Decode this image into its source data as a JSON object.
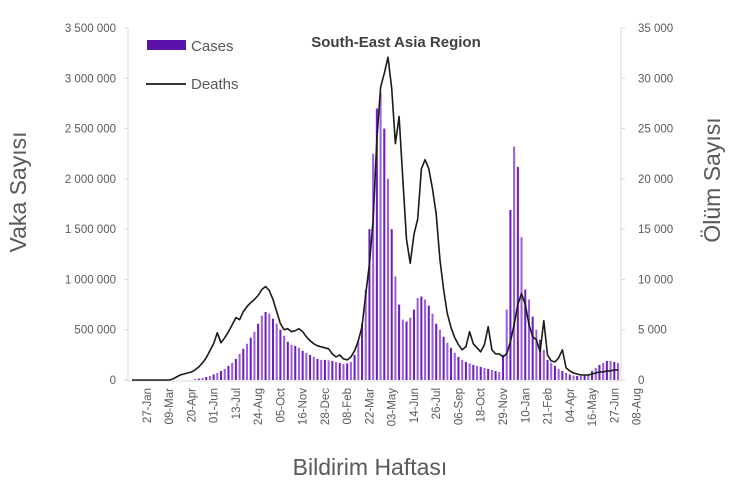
{
  "chart_data": {
    "type": "bar+line",
    "title": "South-East Asia Region",
    "xlabel": "Bildirim Haftası",
    "ylabel": "Vaka Sayısı",
    "y2label": "Ölüm Sayısı",
    "ylim": [
      0,
      3500000
    ],
    "y2lim": [
      0,
      35000
    ],
    "yticks": [
      "0",
      "500 000",
      "1 000 000",
      "1 500 000",
      "2 000 000",
      "2 500 000",
      "3 000 000",
      "3 500 000"
    ],
    "y2ticks": [
      "0",
      "5 000",
      "10 000",
      "15 000",
      "20 000",
      "25 000",
      "30 000",
      "35 000"
    ],
    "xtick_labels": [
      "27-Jan",
      "09-Mar",
      "20-Apr",
      "01-Jun",
      "13-Jul",
      "24-Aug",
      "05-Oct",
      "16-Nov",
      "28-Dec",
      "08-Feb",
      "22-Mar",
      "03-May",
      "14-Jun",
      "26-Jul",
      "06-Sep",
      "18-Oct",
      "29-Nov",
      "10-Jan",
      "21-Feb",
      "04-Apr",
      "16-May",
      "27-Jun",
      "08-Aug"
    ],
    "xtick_first_week_index": 4,
    "xtick_step_weeks": 6,
    "legend": {
      "position": "top-left",
      "entries": [
        "Cases",
        "Deaths"
      ]
    },
    "colors": {
      "cases": "#6a1fc0",
      "deaths": "#1a1a1a"
    },
    "series": [
      {
        "name": "Cases",
        "axis": "left",
        "kind": "bar",
        "values": [
          0,
          0,
          0,
          0,
          0,
          0,
          0,
          0,
          0,
          0,
          0,
          0,
          0,
          0,
          0,
          0,
          0,
          10000,
          15000,
          20000,
          30000,
          40000,
          55000,
          70000,
          90000,
          110000,
          140000,
          170000,
          210000,
          260000,
          310000,
          360000,
          420000,
          480000,
          560000,
          640000,
          676000,
          660000,
          610000,
          560000,
          500000,
          440000,
          380000,
          350000,
          340000,
          320000,
          290000,
          270000,
          250000,
          230000,
          210000,
          200000,
          200000,
          195000,
          190000,
          180000,
          170000,
          160000,
          165000,
          180000,
          250000,
          380000,
          560000,
          900000,
          1500000,
          2250000,
          2700000,
          2860000,
          2500000,
          2000000,
          1500000,
          1030000,
          750000,
          600000,
          580000,
          620000,
          700000,
          815000,
          830000,
          800000,
          740000,
          660000,
          560000,
          500000,
          430000,
          370000,
          320000,
          270000,
          230000,
          200000,
          180000,
          165000,
          150000,
          140000,
          130000,
          120000,
          110000,
          100000,
          90000,
          80000,
          250000,
          700000,
          1690000,
          2320000,
          2120000,
          1420000,
          900000,
          800000,
          630000,
          500000,
          400000,
          300000,
          200000,
          170000,
          140000,
          110000,
          90000,
          70000,
          55000,
          45000,
          40000,
          40000,
          45000,
          60000,
          90000,
          120000,
          150000,
          170000,
          190000,
          190000,
          180000,
          170000
        ]
      },
      {
        "name": "Deaths",
        "axis": "right",
        "kind": "line",
        "values": [
          0,
          0,
          0,
          0,
          0,
          0,
          0,
          0,
          0,
          0,
          0,
          100,
          300,
          500,
          600,
          700,
          800,
          1000,
          1300,
          1700,
          2200,
          2900,
          3600,
          4700,
          3700,
          4200,
          4800,
          5500,
          6200,
          6000,
          6800,
          7300,
          7700,
          8000,
          8400,
          9000,
          9300,
          8900,
          8000,
          6800,
          5600,
          5000,
          5100,
          4800,
          4900,
          5100,
          4800,
          4300,
          3900,
          3600,
          3400,
          3300,
          3200,
          3100,
          2600,
          2300,
          2500,
          2100,
          2000,
          2300,
          2900,
          3900,
          5300,
          8500,
          11500,
          15900,
          24000,
          29100,
          30500,
          32100,
          29000,
          23500,
          26200,
          20000,
          14000,
          11600,
          14500,
          16000,
          21000,
          21900,
          21000,
          19000,
          16500,
          12000,
          9000,
          6600,
          5200,
          4200,
          3500,
          3000,
          3300,
          4800,
          3600,
          3200,
          2800,
          3500,
          5300,
          3000,
          2600,
          2600,
          2300,
          2600,
          3800,
          5500,
          7500,
          8600,
          7500,
          5500,
          4300,
          4000,
          2800,
          5900,
          2500,
          1900,
          1800,
          2200,
          3000,
          1200,
          900,
          700,
          600,
          500,
          500,
          500,
          600,
          700,
          800,
          800,
          900,
          900,
          1000,
          1000
        ]
      }
    ]
  }
}
